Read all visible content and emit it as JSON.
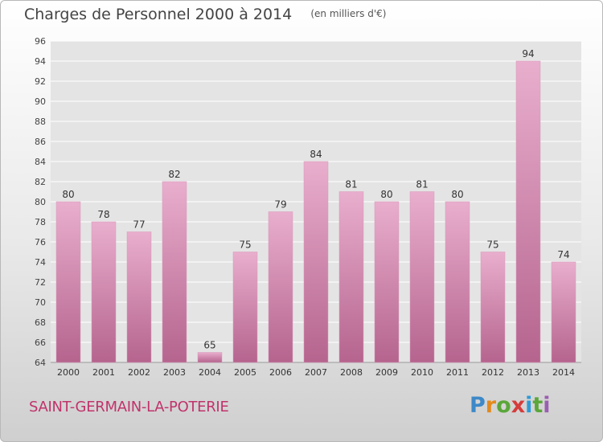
{
  "header": {
    "title": "Charges de Personnel 2000 à 2014",
    "units": "(en milliers d'€)"
  },
  "footer": {
    "commune": "SAINT-GERMAIN-LA-POTERIE",
    "logo": [
      "P",
      "r",
      "o",
      "x",
      "i",
      "t",
      "i"
    ]
  },
  "colors": {
    "bar_light": "#e9aecd",
    "bar_dark": "#b5648e",
    "grid": "#ffffff",
    "text": "#333333",
    "accent": "#c0336b"
  },
  "chart_data": {
    "type": "bar",
    "title": "Charges de Personnel 2000 à 2014",
    "subtitle": "(en milliers d'€)",
    "categories": [
      "2000",
      "2001",
      "2002",
      "2003",
      "2004",
      "2005",
      "2006",
      "2007",
      "2008",
      "2009",
      "2010",
      "2011",
      "2012",
      "2013",
      "2014"
    ],
    "values": [
      80,
      78,
      77,
      82,
      65,
      75,
      79,
      84,
      81,
      80,
      81,
      80,
      75,
      94,
      74
    ],
    "ylim": [
      64,
      96
    ],
    "yticks": [
      64,
      66,
      68,
      70,
      72,
      74,
      76,
      78,
      80,
      82,
      84,
      86,
      88,
      90,
      92,
      94,
      96
    ],
    "grid": true,
    "legend": "none"
  }
}
